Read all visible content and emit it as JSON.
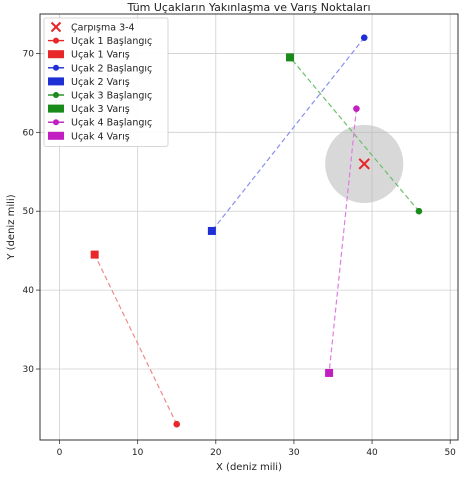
{
  "chart_data": {
    "type": "scatter",
    "title": "Tüm Uçakların Yakınlaşma ve Varış Noktaları",
    "xlabel": "X (deniz mili)",
    "ylabel": "Y (deniz mili)",
    "xlim": [
      -2.5,
      51
    ],
    "ylim": [
      21,
      75
    ],
    "xticks": [
      0,
      10,
      20,
      30,
      40,
      50
    ],
    "yticks": [
      30,
      40,
      50,
      60,
      70
    ],
    "grid": true,
    "legend_position": "top-left",
    "series": [
      {
        "name": "Uçak 1 Başlangıç",
        "kind": "start",
        "color": "#e8272a",
        "x": 15,
        "y": 23
      },
      {
        "name": "Uçak 1 Varış",
        "kind": "end",
        "color": "#e8272a",
        "x": 4.5,
        "y": 44.5
      },
      {
        "name": "Uçak 2 Başlangıç",
        "kind": "start",
        "color": "#1f2fd6",
        "x": 39,
        "y": 72
      },
      {
        "name": "Uçak 2 Varış",
        "kind": "end",
        "color": "#1f2fd6",
        "x": 19.5,
        "y": 47.5
      },
      {
        "name": "Uçak 3 Başlangıç",
        "kind": "start",
        "color": "#1a8a1a",
        "x": 46,
        "y": 50
      },
      {
        "name": "Uçak 3 Varış",
        "kind": "end",
        "color": "#1a8a1a",
        "x": 29.5,
        "y": 69.5
      },
      {
        "name": "Uçak 4 Başlangıç",
        "kind": "start",
        "color": "#c21fc2",
        "x": 38,
        "y": 63
      },
      {
        "name": "Uçak 4 Varış",
        "kind": "end",
        "color": "#c21fc2",
        "x": 34.5,
        "y": 29.5
      }
    ],
    "paths": [
      {
        "color": "#f08a8a",
        "from": [
          15,
          23
        ],
        "to": [
          4.5,
          44.5
        ]
      },
      {
        "color": "#8a8ff0",
        "from": [
          39,
          72
        ],
        "to": [
          19.5,
          47.5
        ]
      },
      {
        "color": "#6abf6a",
        "from": [
          46,
          50
        ],
        "to": [
          29.5,
          69.5
        ]
      },
      {
        "color": "#e27ae2",
        "from": [
          38,
          63
        ],
        "to": [
          34.5,
          29.5
        ]
      }
    ],
    "collision": {
      "name": "Çarpışma 3-4",
      "x": 39,
      "y": 56,
      "color": "#e8272a",
      "zone_radius": 5,
      "zone_color": "#b8b8b8"
    }
  }
}
